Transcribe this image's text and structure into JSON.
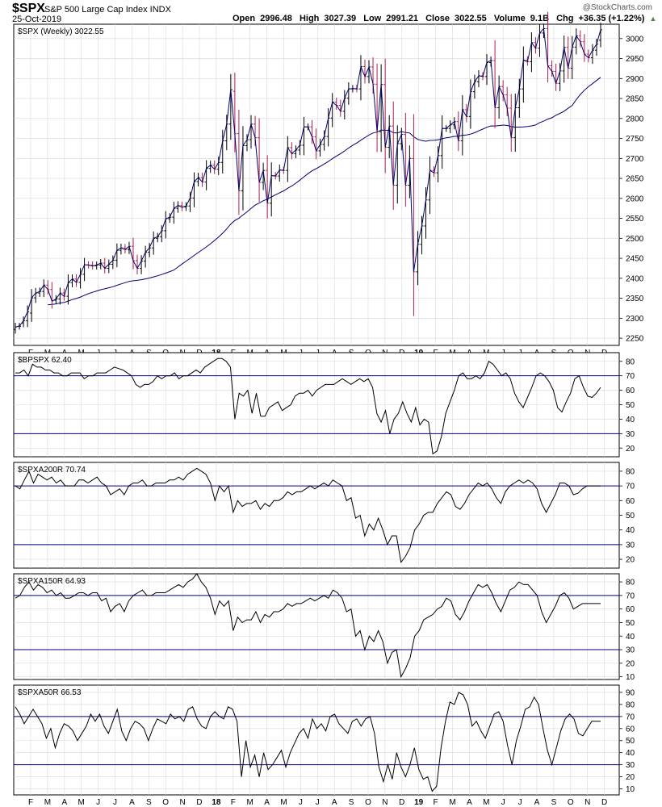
{
  "header": {
    "symbol": "$SPX",
    "name": "S&P 500 Large Cap Index INDX",
    "brand": "@StockCharts.com",
    "date": "25-Oct-2019",
    "open_label": "Open",
    "open": "2996.48",
    "high_label": "High",
    "high": "3027.39",
    "low_label": "Low",
    "low": "2991.21",
    "close_label": "Close",
    "close": "3022.55",
    "volume_label": "Volume",
    "volume": "9.1B",
    "chg_label": "Chg",
    "chg": "+36.35 (+1.22%)"
  },
  "x_axis_labels": [
    "F",
    "M",
    "A",
    "M",
    "J",
    "J",
    "A",
    "S",
    "O",
    "N",
    "D",
    "18",
    "F",
    "M",
    "A",
    "M",
    "J",
    "J",
    "A",
    "S",
    "O",
    "N",
    "D",
    "19",
    "F",
    "M",
    "A",
    "M",
    "J",
    "J",
    "A",
    "S",
    "O",
    "N",
    "D"
  ],
  "bold_x_labels": [
    "18",
    "19"
  ],
  "colors": {
    "up": "#000000",
    "down": "#b01e4e",
    "line": "#000070",
    "ma": "#000070",
    "ref": "#000080",
    "grid": "#d8d8d8"
  },
  "chart_data": [
    {
      "type": "ohlc",
      "legend": "$SPX (Weekly) 3022.55",
      "y_ticks": [
        2250,
        2300,
        2350,
        2400,
        2450,
        2500,
        2550,
        2600,
        2650,
        2700,
        2750,
        2800,
        2850,
        2900,
        2950,
        3000
      ],
      "ylim": [
        2232,
        3036
      ],
      "close": [
        2278,
        2280,
        2294,
        2316,
        2351,
        2363,
        2367,
        2383,
        2372,
        2343,
        2348,
        2363,
        2355,
        2389,
        2398,
        2390,
        2410,
        2434,
        2433,
        2431,
        2433,
        2438,
        2425,
        2435,
        2445,
        2470,
        2476,
        2472,
        2480,
        2444,
        2425,
        2443,
        2465,
        2476,
        2500,
        2504,
        2519,
        2549,
        2553,
        2575,
        2582,
        2578,
        2581,
        2601,
        2642,
        2652,
        2641,
        2675,
        2683,
        2673,
        2690,
        2744,
        2786,
        2872,
        2762,
        2619,
        2732,
        2747,
        2786,
        2752,
        2640,
        2670,
        2588,
        2657,
        2656,
        2671,
        2670,
        2727,
        2712,
        2721,
        2733,
        2779,
        2779,
        2754,
        2719,
        2735,
        2755,
        2801,
        2841,
        2833,
        2818,
        2851,
        2874,
        2875,
        2874,
        2930,
        2905,
        2929,
        2886,
        2767,
        2885,
        2728,
        2781,
        2633,
        2737,
        2760,
        2633,
        2700,
        2416,
        2485,
        2531,
        2596,
        2670,
        2664,
        2707,
        2775,
        2775,
        2784,
        2792,
        2744,
        2822,
        2805,
        2867,
        2892,
        2907,
        2905,
        2940,
        2945,
        2827,
        2880,
        2859,
        2826,
        2752,
        2827,
        2874,
        2946,
        2942,
        2990,
        2976,
        3014,
        3025,
        2932,
        2918,
        2888,
        2919,
        2978,
        2926,
        2979,
        3007,
        2992,
        2961,
        2952,
        2971,
        2986,
        3022
      ],
      "open": [
        2272,
        2280,
        2288,
        2294,
        2313,
        2351,
        2363,
        2367,
        2383,
        2372,
        2345,
        2348,
        2363,
        2355,
        2389,
        2398,
        2390,
        2410,
        2434,
        2433,
        2431,
        2433,
        2438,
        2425,
        2435,
        2445,
        2470,
        2476,
        2472,
        2480,
        2444,
        2425,
        2443,
        2465,
        2476,
        2500,
        2504,
        2519,
        2549,
        2553,
        2575,
        2582,
        2578,
        2581,
        2601,
        2642,
        2652,
        2641,
        2675,
        2683,
        2673,
        2690,
        2744,
        2786,
        2868,
        2762,
        2619,
        2732,
        2747,
        2786,
        2752,
        2640,
        2670,
        2588,
        2657,
        2656,
        2671,
        2670,
        2727,
        2712,
        2721,
        2733,
        2779,
        2779,
        2754,
        2719,
        2735,
        2755,
        2801,
        2841,
        2833,
        2818,
        2851,
        2874,
        2875,
        2874,
        2930,
        2905,
        2929,
        2886,
        2767,
        2885,
        2728,
        2781,
        2633,
        2737,
        2760,
        2633,
        2700,
        2416,
        2485,
        2531,
        2596,
        2670,
        2664,
        2707,
        2775,
        2775,
        2784,
        2792,
        2744,
        2822,
        2805,
        2867,
        2892,
        2907,
        2905,
        2940,
        2945,
        2827,
        2880,
        2859,
        2826,
        2752,
        2827,
        2874,
        2946,
        2942,
        2990,
        2976,
        3014,
        3025,
        2932,
        2918,
        2888,
        2919,
        2978,
        2926,
        2979,
        3007,
        2992,
        2961,
        2952,
        2971,
        2996
      ]
    },
    {
      "type": "line",
      "legend": "$BPSPX 62.40",
      "y_ticks": [
        20,
        30,
        40,
        50,
        60,
        70,
        80
      ],
      "ref_lines": [
        70,
        30
      ],
      "ylim": [
        14,
        86
      ],
      "values": [
        72,
        72,
        74,
        70,
        78,
        76,
        76,
        74,
        74,
        72,
        72,
        70,
        70,
        72,
        72,
        72,
        68,
        70,
        70,
        72,
        72,
        72,
        74,
        76,
        75,
        74,
        72,
        70,
        64,
        62,
        64,
        64,
        66,
        70,
        68,
        70,
        70,
        72,
        68,
        70,
        70,
        72,
        74,
        72,
        76,
        78,
        80,
        82,
        82,
        80,
        76,
        40,
        58,
        56,
        60,
        44,
        58,
        42,
        42,
        48,
        50,
        52,
        46,
        48,
        50,
        56,
        58,
        58,
        60,
        56,
        60,
        62,
        64,
        64,
        64,
        66,
        68,
        66,
        64,
        66,
        68,
        66,
        68,
        62,
        44,
        38,
        46,
        30,
        40,
        44,
        52,
        44,
        38,
        48,
        36,
        40,
        38,
        16,
        18,
        28,
        44,
        52,
        60,
        70,
        72,
        68,
        68,
        70,
        68,
        72,
        80,
        78,
        74,
        70,
        72,
        68,
        58,
        52,
        48,
        55,
        62,
        70,
        72,
        70,
        66,
        60,
        48,
        45,
        52,
        58,
        68,
        70,
        62,
        56,
        55,
        58,
        62
      ],
      "last": 62.4
    },
    {
      "type": "line",
      "legend": "$SPXA200R 70.74",
      "y_ticks": [
        20,
        30,
        40,
        50,
        60,
        70,
        80
      ],
      "ref_lines": [
        70,
        30
      ],
      "ylim": [
        14,
        86
      ],
      "values": [
        70,
        68,
        74,
        80,
        72,
        78,
        76,
        74,
        76,
        72,
        74,
        70,
        70,
        70,
        74,
        74,
        72,
        74,
        76,
        72,
        70,
        64,
        66,
        68,
        64,
        70,
        72,
        72,
        74,
        70,
        70,
        72,
        72,
        72,
        74,
        74,
        76,
        74,
        78,
        80,
        82,
        80,
        78,
        72,
        60,
        70,
        66,
        70,
        52,
        60,
        56,
        58,
        58,
        60,
        54,
        58,
        56,
        60,
        60,
        62,
        66,
        64,
        66,
        66,
        68,
        70,
        68,
        70,
        72,
        70,
        74,
        72,
        70,
        60,
        62,
        48,
        50,
        36,
        44,
        40,
        48,
        40,
        30,
        36,
        36,
        18,
        22,
        28,
        40,
        44,
        50,
        52,
        52,
        58,
        62,
        66,
        64,
        56,
        54,
        58,
        64,
        68,
        72,
        70,
        72,
        68,
        62,
        58,
        66,
        70,
        72,
        74,
        72,
        74,
        72,
        68,
        58,
        52,
        58,
        64,
        72,
        72,
        70,
        64,
        65,
        68,
        70,
        70,
        70,
        70
      ],
      "last": 70.74
    },
    {
      "type": "line",
      "legend": "$SPXA150R 64.93",
      "y_ticks": [
        10,
        20,
        30,
        40,
        50,
        60,
        70,
        80
      ],
      "ref_lines": [
        70,
        30
      ],
      "ylim": [
        8,
        86
      ],
      "values": [
        68,
        70,
        76,
        80,
        74,
        78,
        76,
        72,
        74,
        70,
        72,
        68,
        68,
        70,
        72,
        72,
        70,
        72,
        72,
        66,
        68,
        58,
        62,
        64,
        58,
        66,
        70,
        72,
        74,
        70,
        70,
        72,
        72,
        72,
        74,
        76,
        78,
        76,
        80,
        82,
        86,
        80,
        76,
        68,
        56,
        66,
        62,
        66,
        44,
        54,
        50,
        52,
        52,
        58,
        50,
        56,
        54,
        58,
        58,
        60,
        64,
        62,
        64,
        64,
        66,
        68,
        66,
        68,
        70,
        68,
        74,
        72,
        68,
        58,
        60,
        40,
        44,
        30,
        40,
        36,
        44,
        36,
        20,
        28,
        30,
        10,
        16,
        24,
        40,
        44,
        52,
        54,
        56,
        60,
        62,
        68,
        66,
        56,
        52,
        58,
        66,
        72,
        78,
        76,
        78,
        72,
        64,
        58,
        66,
        74,
        76,
        80,
        78,
        78,
        74,
        70,
        58,
        50,
        56,
        62,
        70,
        72,
        68,
        60,
        62,
        64,
        64,
        64,
        64,
        64
      ],
      "last": 64.93
    },
    {
      "type": "line",
      "legend": "$SPXA50R 66.53",
      "y_ticks": [
        10,
        20,
        30,
        40,
        50,
        60,
        70,
        80,
        90
      ],
      "ref_lines": [
        70,
        30
      ],
      "ylim": [
        5,
        96
      ],
      "values": [
        78,
        72,
        64,
        70,
        76,
        70,
        64,
        52,
        60,
        44,
        56,
        64,
        62,
        58,
        50,
        56,
        62,
        72,
        66,
        72,
        62,
        56,
        66,
        76,
        58,
        50,
        60,
        66,
        64,
        60,
        50,
        60,
        68,
        66,
        64,
        72,
        68,
        70,
        66,
        76,
        78,
        68,
        62,
        60,
        70,
        74,
        70,
        68,
        78,
        76,
        66,
        20,
        50,
        28,
        38,
        20,
        40,
        26,
        30,
        36,
        42,
        28,
        40,
        48,
        56,
        60,
        52,
        68,
        60,
        64,
        58,
        70,
        72,
        64,
        60,
        56,
        66,
        68,
        62,
        68,
        70,
        56,
        28,
        16,
        30,
        18,
        40,
        28,
        20,
        30,
        44,
        26,
        18,
        20,
        8,
        12,
        44,
        66,
        82,
        80,
        90,
        88,
        80,
        62,
        66,
        58,
        52,
        62,
        72,
        74,
        66,
        46,
        30,
        50,
        62,
        76,
        78,
        86,
        80,
        60,
        42,
        30,
        44,
        58,
        68,
        72,
        68,
        56,
        54,
        60,
        66,
        66,
        66
      ],
      "last": 66.53
    }
  ]
}
